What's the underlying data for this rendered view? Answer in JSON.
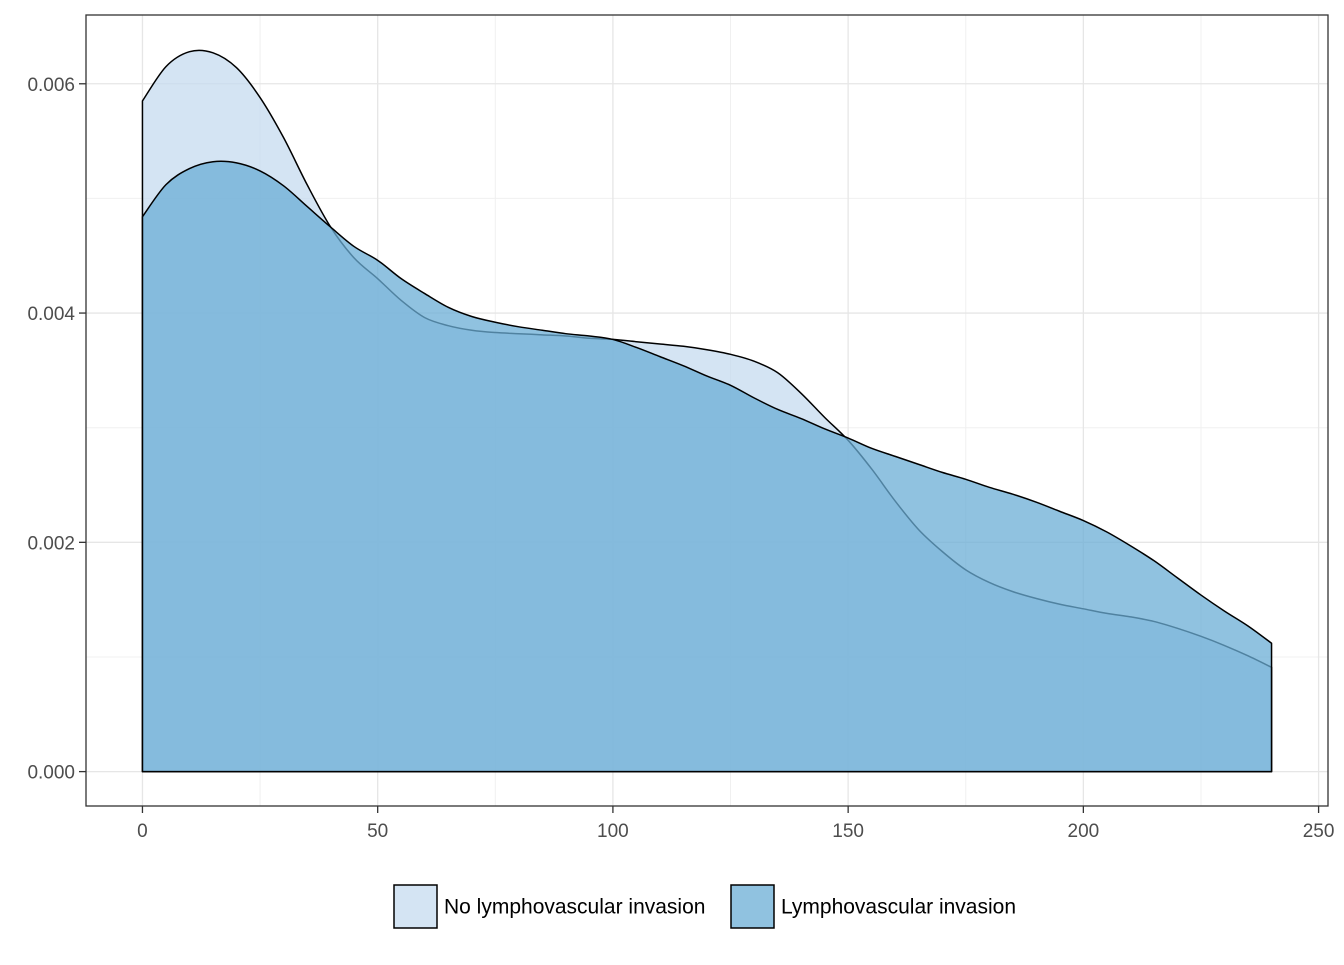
{
  "chart_data": {
    "type": "area",
    "title": "",
    "xlabel": "",
    "ylabel": "",
    "xlim": [
      -12,
      252
    ],
    "ylim": [
      -0.0003,
      0.0066
    ],
    "x_ticks": [
      0,
      50,
      100,
      150,
      200,
      250
    ],
    "x_tick_labels": [
      "0",
      "50",
      "100",
      "150",
      "200",
      "250"
    ],
    "y_ticks": [
      0.0,
      0.002,
      0.004,
      0.006
    ],
    "y_tick_labels": [
      "0.000",
      "0.002",
      "0.004",
      "0.006"
    ],
    "grid": true,
    "legend_position": "bottom",
    "series": [
      {
        "name": "No lymphovascular invasion",
        "color": "#c6dbef",
        "x": [
          0,
          5,
          10,
          15,
          20,
          25,
          30,
          35,
          40,
          45,
          50,
          55,
          60,
          65,
          70,
          75,
          80,
          85,
          90,
          95,
          100,
          105,
          110,
          115,
          120,
          125,
          130,
          135,
          140,
          145,
          150,
          155,
          160,
          165,
          170,
          175,
          180,
          185,
          190,
          195,
          200,
          205,
          210,
          215,
          220,
          225,
          230,
          235,
          240
        ],
        "y": [
          0.00585,
          0.00615,
          0.00628,
          0.00627,
          0.00614,
          0.00588,
          0.00553,
          0.00512,
          0.00475,
          0.00448,
          0.0043,
          0.00411,
          0.00396,
          0.00389,
          0.00385,
          0.00383,
          0.00382,
          0.00381,
          0.0038,
          0.00378,
          0.00377,
          0.00375,
          0.00373,
          0.00371,
          0.00368,
          0.00364,
          0.00358,
          0.00348,
          0.0033,
          0.00309,
          0.00289,
          0.00264,
          0.00236,
          0.00211,
          0.00192,
          0.00176,
          0.00165,
          0.00157,
          0.00151,
          0.00146,
          0.00142,
          0.00138,
          0.00135,
          0.00131,
          0.00125,
          0.00118,
          0.0011,
          0.00101,
          0.00091
        ]
      },
      {
        "name": "Lymphovascular invasion",
        "color": "#6baed6",
        "x": [
          0,
          5,
          10,
          15,
          20,
          25,
          30,
          35,
          40,
          45,
          50,
          55,
          60,
          65,
          70,
          75,
          80,
          85,
          90,
          95,
          100,
          105,
          110,
          115,
          120,
          125,
          130,
          135,
          140,
          145,
          150,
          155,
          160,
          165,
          170,
          175,
          180,
          185,
          190,
          195,
          200,
          205,
          210,
          215,
          220,
          225,
          230,
          235,
          240
        ],
        "y": [
          0.00484,
          0.00512,
          0.00526,
          0.00532,
          0.00531,
          0.00524,
          0.00511,
          0.00493,
          0.00475,
          0.00458,
          0.00446,
          0.0043,
          0.00417,
          0.00405,
          0.00397,
          0.00392,
          0.00388,
          0.00385,
          0.00382,
          0.0038,
          0.00377,
          0.0037,
          0.00362,
          0.00354,
          0.00345,
          0.00337,
          0.00326,
          0.00316,
          0.00308,
          0.00299,
          0.00291,
          0.00282,
          0.00275,
          0.00268,
          0.00261,
          0.00255,
          0.00248,
          0.00242,
          0.00235,
          0.00227,
          0.00219,
          0.00209,
          0.00197,
          0.00184,
          0.00169,
          0.00154,
          0.0014,
          0.00127,
          0.00112
        ]
      }
    ]
  }
}
